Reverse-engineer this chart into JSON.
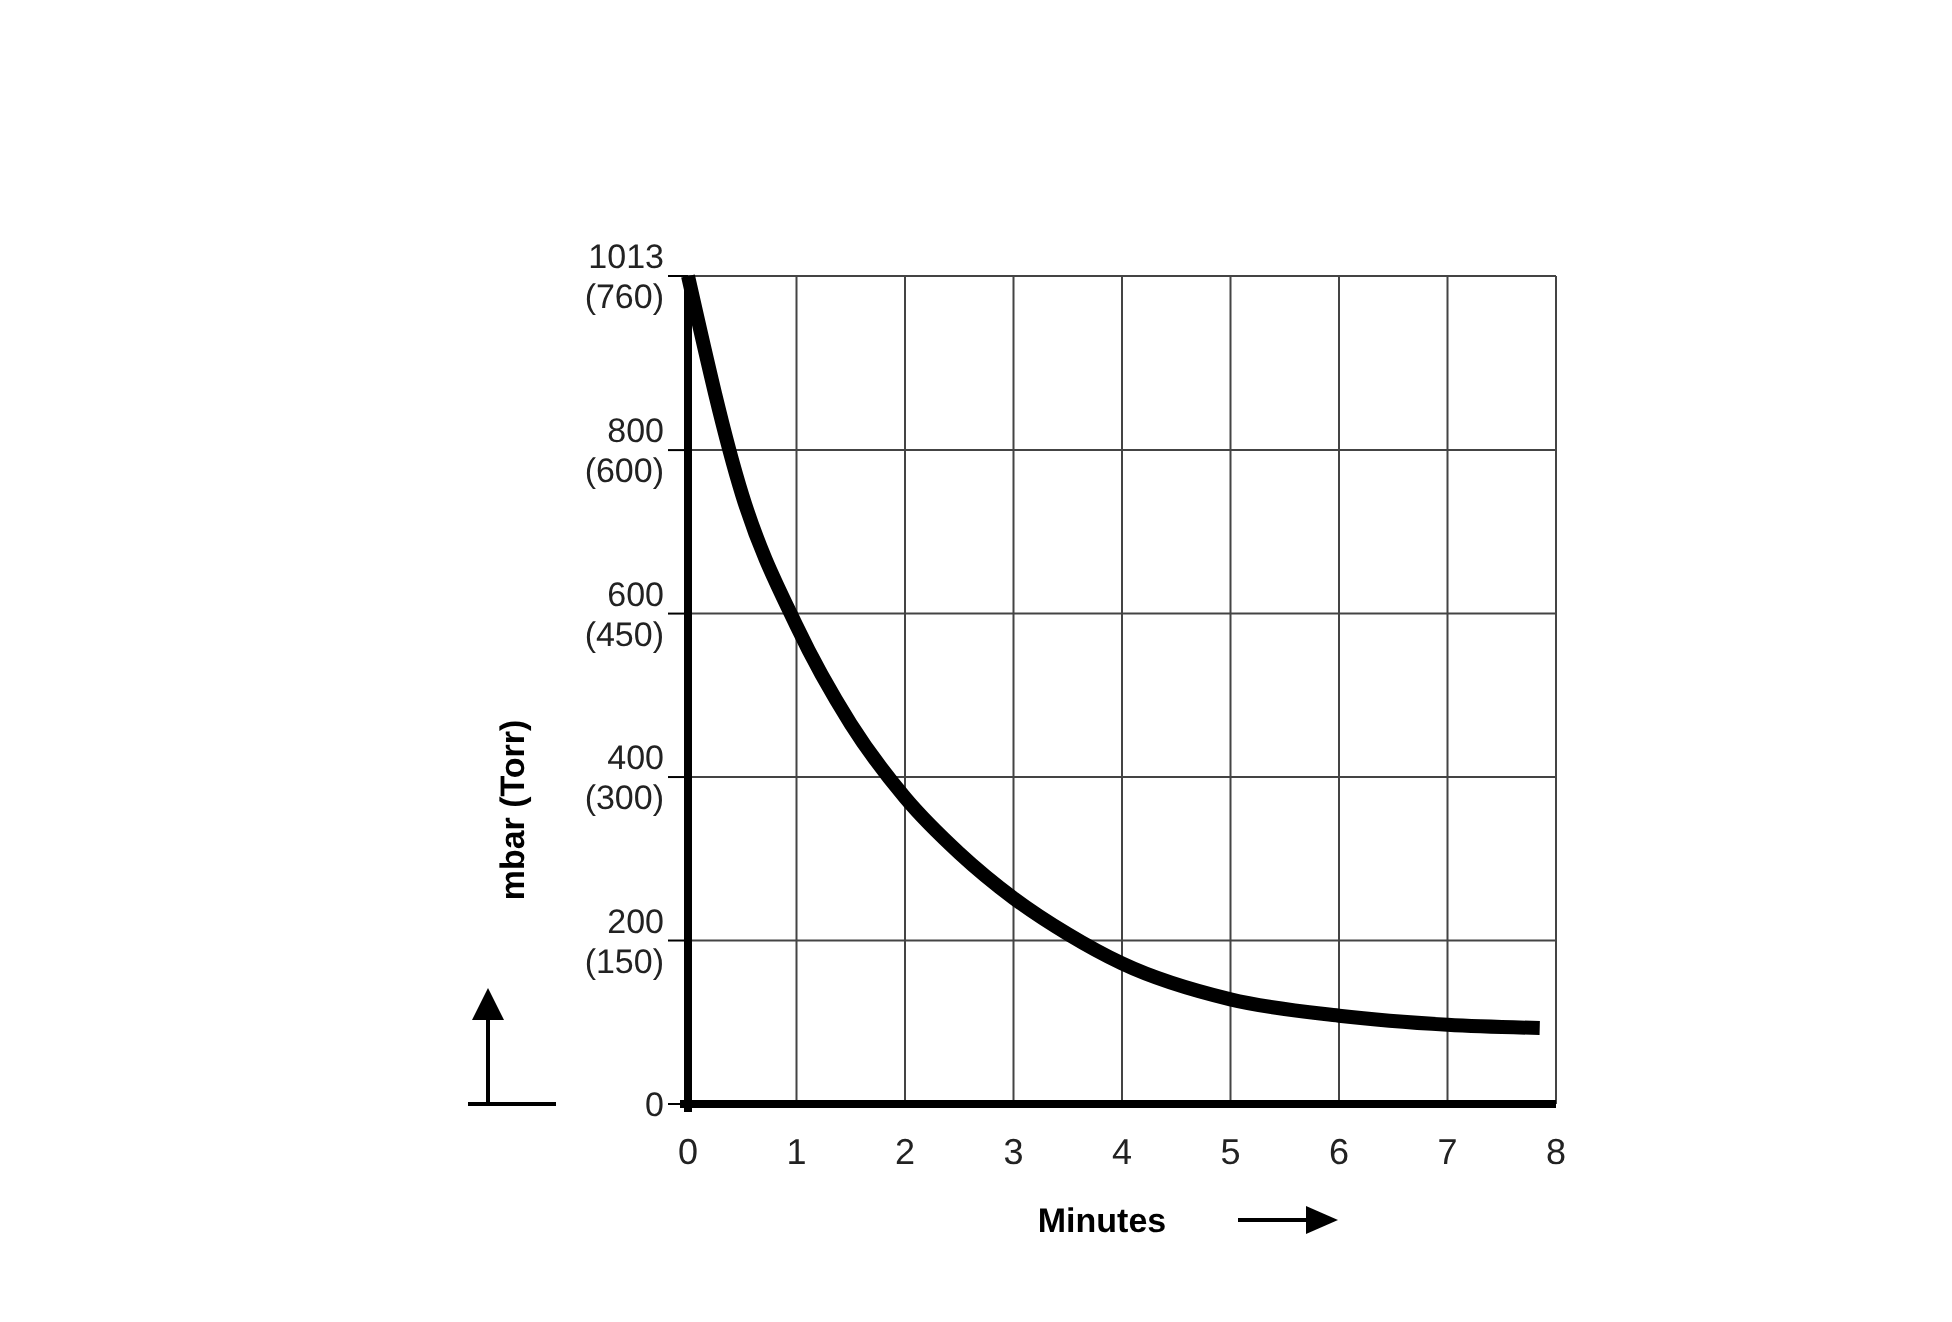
{
  "chart_data": {
    "type": "line",
    "xlabel": "Minutes",
    "y2label": "mbar (Torr)",
    "x": [
      0,
      0.5,
      1,
      1.5,
      2,
      2.5,
      3,
      3.5,
      4,
      5,
      6,
      7,
      7.85
    ],
    "series": [
      {
        "color": "#000000",
        "values": [
          1013,
          745,
          585,
          465,
          375,
          307,
          252,
          208,
          172,
          128,
          108,
          97,
          93
        ]
      }
    ],
    "xlim": [
      0,
      8
    ],
    "xticks": [
      0,
      1,
      2,
      3,
      4,
      5,
      6,
      7,
      8
    ],
    "ylim": [
      0,
      1013
    ],
    "yticks": [
      0,
      200,
      400,
      600,
      800,
      1013
    ],
    "y2lim": [
      0,
      760
    ],
    "y2ticks": [
      {
        "value": 150,
        "label": "(150)"
      },
      {
        "value": 300,
        "label": "(300)"
      },
      {
        "value": 450,
        "label": "(450)"
      },
      {
        "value": 600,
        "label": "(600)"
      },
      {
        "value": 760,
        "label": "(760)"
      }
    ],
    "grid": true,
    "marker": "none",
    "line_style": "solid"
  }
}
